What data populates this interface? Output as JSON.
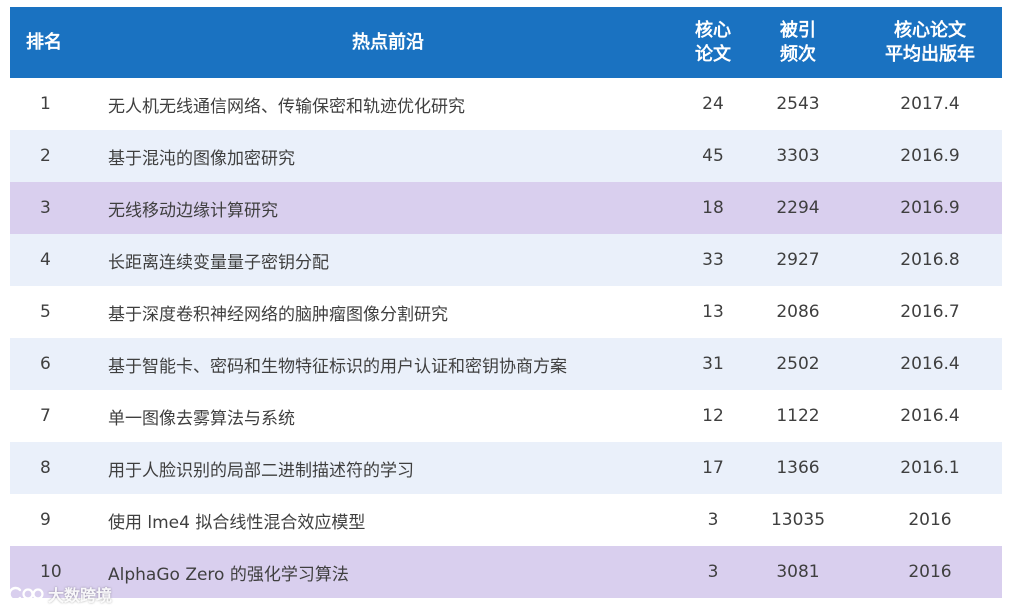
{
  "table": {
    "headers": {
      "rank": "排名",
      "topic": "热点前沿",
      "core_line1": "核心",
      "core_line2": "论文",
      "cite_line1": "被引",
      "cite_line2": "频次",
      "year_line1": "核心论文",
      "year_line2": "平均出版年"
    },
    "rows": [
      {
        "rank": "1",
        "topic": "无人机无线通信网络、传输保密和轨迹优化研究",
        "core": "24",
        "cite": "2543",
        "year": "2017.4"
      },
      {
        "rank": "2",
        "topic": "基于混沌的图像加密研究",
        "core": "45",
        "cite": "3303",
        "year": "2016.9"
      },
      {
        "rank": "3",
        "topic": "无线移动边缘计算研究",
        "core": "18",
        "cite": "2294",
        "year": "2016.9"
      },
      {
        "rank": "4",
        "topic": "长距离连续变量量子密钥分配",
        "core": "33",
        "cite": "2927",
        "year": "2016.8"
      },
      {
        "rank": "5",
        "topic": "基于深度卷积神经网络的脑肿瘤图像分割研究",
        "core": "13",
        "cite": "2086",
        "year": "2016.7"
      },
      {
        "rank": "6",
        "topic": "基于智能卡、密码和生物特征标识的用户认证和密钥协商方案",
        "core": "31",
        "cite": "2502",
        "year": "2016.4"
      },
      {
        "rank": "7",
        "topic": "单一图像去雾算法与系统",
        "core": "12",
        "cite": "1122",
        "year": "2016.4"
      },
      {
        "rank": "8",
        "topic": "用于人脸识别的局部二进制描述符的学习",
        "core": "17",
        "cite": "1366",
        "year": "2016.1"
      },
      {
        "rank": "9",
        "topic": "使用 lme4 拟合线性混合效应模型",
        "core": "3",
        "cite": "13035",
        "year": "2016"
      },
      {
        "rank": "10",
        "topic": "AlphaGo Zero 的强化学习算法",
        "core": "3",
        "cite": "3081",
        "year": "2016"
      }
    ]
  },
  "watermark": {
    "text": "大数跨境",
    "logo_icon": "brand-logo-icon"
  },
  "colors": {
    "header_bg": "#1a72c1",
    "row_blue": "#eaf0fa",
    "row_purple": "#d9cfee",
    "text": "#3f3f3f"
  }
}
